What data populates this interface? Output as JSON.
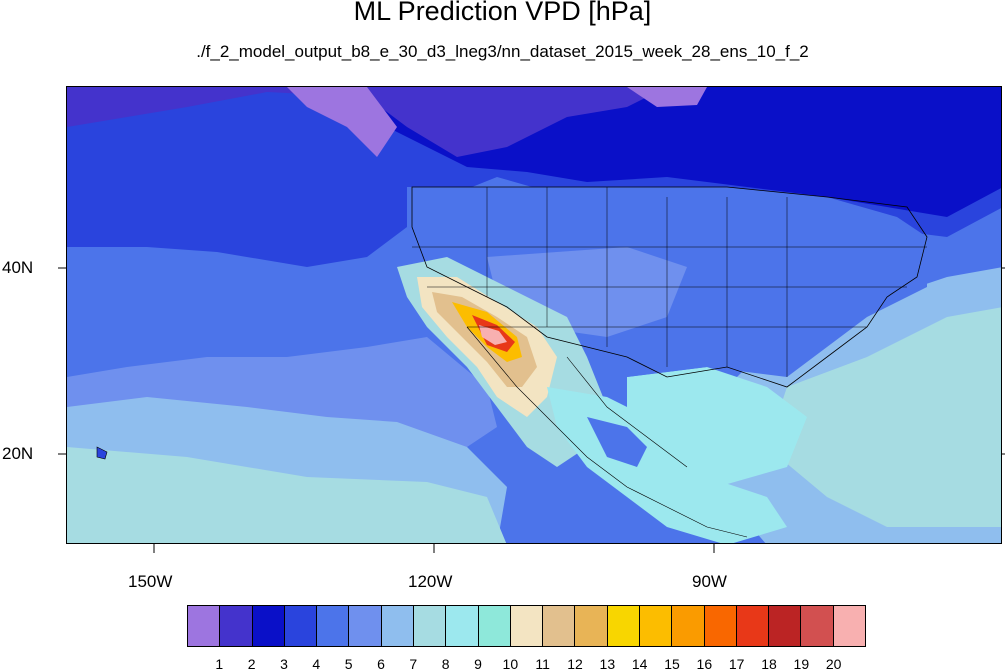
{
  "title": "ML Prediction VPD [hPa]",
  "subtitle": "./f_2_model_output_b8_e_30_d3_lneg3/nn_dataset_2015_week_28_ens_10_f_2",
  "lat_labels": [
    "40N",
    "20N"
  ],
  "lon_labels": [
    "150W",
    "120W",
    "90W"
  ],
  "colorbar": {
    "labels": [
      "1",
      "2",
      "3",
      "4",
      "5",
      "6",
      "7",
      "8",
      "9",
      "10",
      "11",
      "12",
      "13",
      "14",
      "15",
      "16",
      "17",
      "18",
      "19",
      "20"
    ],
    "colors": [
      "#9d75e0",
      "#4433cc",
      "#0a10c8",
      "#2a44dd",
      "#4c74ea",
      "#6f90ee",
      "#8fbeee",
      "#a6dce2",
      "#9ce8ee",
      "#8ee8da",
      "#f3e4c2",
      "#e2c08e",
      "#e8b456",
      "#f8d600",
      "#fcbd00",
      "#fa9b00",
      "#f96700",
      "#e83818",
      "#bb2424",
      "#d25050",
      "#f8b0b0"
    ]
  }
}
